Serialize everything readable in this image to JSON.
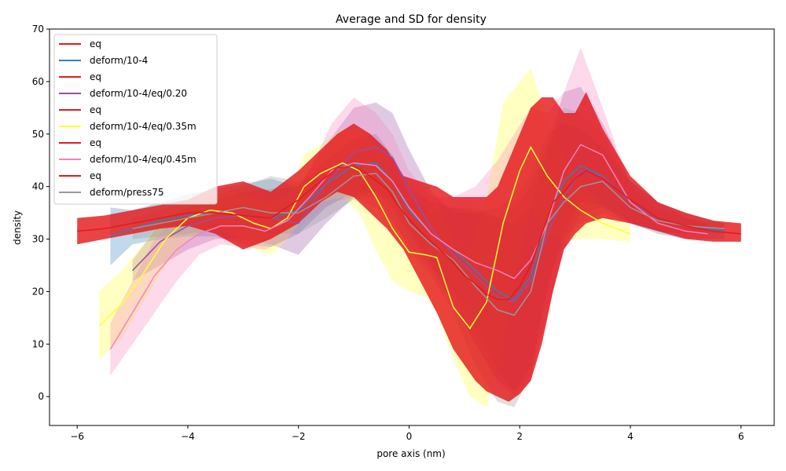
{
  "chart_data": {
    "type": "line",
    "title": "Average and SD for density",
    "xlabel": "pore axis (nm)",
    "ylabel": "density",
    "xlim": [
      -6.5,
      6.6
    ],
    "ylim": [
      -5.5,
      70
    ],
    "xticks": [
      -6,
      -4,
      -2,
      0,
      2,
      4,
      6
    ],
    "yticks": [
      0,
      10,
      20,
      30,
      40,
      50,
      60,
      70
    ],
    "legend_position": "top-left",
    "grid": false,
    "legend": [
      {
        "label": "eq",
        "color": "#e41a1c"
      },
      {
        "label": "deform/10-4",
        "color": "#377eb8"
      },
      {
        "label": "eq",
        "color": "#e41a1c"
      },
      {
        "label": "deform/10-4/eq/0.20",
        "color": "#984ea3"
      },
      {
        "label": "eq",
        "color": "#e41a1c"
      },
      {
        "label": "deform/10-4/eq/0.35m",
        "color": "#ffff33"
      },
      {
        "label": "eq",
        "color": "#e41a1c"
      },
      {
        "label": "deform/10-4/eq/0.45m",
        "color": "#f781bf"
      },
      {
        "label": "eq",
        "color": "#e41a1c"
      },
      {
        "label": "deform/press75",
        "color": "#999999"
      }
    ],
    "series": [
      {
        "name": "deform/10-4",
        "color": "#377eb8",
        "x": [
          -5.4,
          -5.0,
          -4.5,
          -4.0,
          -3.5,
          -3.0,
          -2.5,
          -2.0,
          -1.5,
          -1.0,
          -0.6,
          -0.3,
          0.0,
          0.4,
          0.8,
          1.2,
          1.6,
          1.9,
          2.2,
          2.5,
          2.8,
          3.1,
          3.5,
          4.0,
          4.5,
          5.0,
          5.7
        ],
        "y": [
          30.5,
          32.0,
          33.5,
          34.5,
          35.0,
          34.5,
          34.0,
          35.5,
          40.5,
          44.0,
          44.5,
          41.0,
          35.5,
          31.0,
          28.0,
          24.0,
          20.0,
          18.5,
          23.0,
          34.0,
          41.0,
          44.0,
          42.0,
          37.0,
          34.0,
          32.5,
          31.5
        ],
        "lower": [
          25.0,
          29.0,
          30.0,
          30.5,
          30.5,
          29.0,
          28.5,
          31.0,
          36.0,
          39.0,
          39.0,
          36.0,
          31.0,
          25.0,
          20.0,
          13.0,
          5.0,
          1.0,
          6.0,
          20.0,
          32.0,
          37.0,
          36.5,
          33.0,
          31.0,
          30.0,
          30.0
        ],
        "upper": [
          36.0,
          35.5,
          37.0,
          38.5,
          39.5,
          40.5,
          41.5,
          40.0,
          45.0,
          49.0,
          50.0,
          46.0,
          40.0,
          37.0,
          36.0,
          35.0,
          36.0,
          38.0,
          42.0,
          50.0,
          52.0,
          51.0,
          47.5,
          41.0,
          37.0,
          35.0,
          33.0
        ]
      },
      {
        "name": "deform/10-4/eq/0.20",
        "color": "#984ea3",
        "x": [
          -5.0,
          -4.5,
          -4.0,
          -3.5,
          -3.0,
          -2.5,
          -2.0,
          -1.5,
          -1.0,
          -0.6,
          -0.3,
          0.0,
          0.4,
          0.8,
          1.2,
          1.6,
          1.9,
          2.2,
          2.5,
          2.8,
          3.1,
          3.5,
          4.0,
          4.5,
          5.0,
          5.4
        ],
        "y": [
          24.0,
          29.5,
          32.5,
          34.0,
          34.5,
          34.0,
          33.0,
          40.5,
          46.5,
          47.5,
          45.5,
          39.5,
          32.0,
          27.0,
          23.0,
          19.0,
          18.0,
          22.0,
          31.0,
          38.0,
          43.0,
          42.0,
          37.0,
          34.0,
          32.5,
          32.0
        ],
        "lower": [
          22.0,
          25.0,
          28.0,
          30.0,
          30.0,
          29.0,
          27.0,
          33.0,
          38.0,
          39.0,
          37.0,
          32.0,
          25.0,
          18.0,
          10.0,
          3.0,
          1.0,
          4.0,
          16.0,
          28.0,
          35.0,
          36.0,
          33.0,
          31.5,
          31.0,
          31.0
        ],
        "upper": [
          26.0,
          33.0,
          36.0,
          37.5,
          39.0,
          39.5,
          40.0,
          48.0,
          55.0,
          56.0,
          54.0,
          47.0,
          39.0,
          35.0,
          35.0,
          34.0,
          36.0,
          40.0,
          48.0,
          58.0,
          59.0,
          52.0,
          41.0,
          37.0,
          34.0,
          33.0
        ]
      },
      {
        "name": "deform/10-4/eq/0.35m",
        "color": "#ffff33",
        "x": [
          -5.6,
          -5.2,
          -4.8,
          -4.4,
          -4.0,
          -3.6,
          -3.2,
          -2.8,
          -2.5,
          -2.2,
          -1.9,
          -1.6,
          -1.2,
          -0.9,
          -0.6,
          -0.3,
          0.0,
          0.3,
          0.5,
          0.8,
          1.1,
          1.4,
          1.7,
          2.0,
          2.2,
          2.5,
          2.8,
          3.1,
          3.5,
          4.0
        ],
        "y": [
          13.5,
          17.5,
          23.5,
          30.0,
          34.0,
          35.5,
          35.0,
          33.0,
          32.0,
          34.0,
          40.0,
          42.5,
          44.5,
          43.0,
          38.0,
          32.0,
          27.5,
          27.0,
          26.5,
          17.0,
          13.0,
          18.0,
          33.0,
          43.0,
          47.5,
          42.0,
          38.0,
          35.5,
          33.0,
          31.0
        ],
        "lower": [
          7.0,
          11.0,
          18.0,
          25.0,
          30.0,
          32.0,
          31.0,
          28.0,
          27.0,
          30.0,
          34.0,
          37.0,
          38.0,
          35.0,
          28.0,
          22.0,
          20.0,
          19.0,
          16.0,
          7.0,
          0.0,
          -2.0,
          10.0,
          27.0,
          36.0,
          31.0,
          30.0,
          30.0,
          30.0,
          29.5
        ],
        "upper": [
          20.0,
          24.0,
          29.0,
          35.0,
          38.0,
          39.0,
          39.0,
          38.0,
          37.0,
          38.0,
          46.0,
          48.0,
          51.0,
          51.0,
          48.0,
          42.0,
          35.0,
          35.0,
          37.0,
          30.0,
          28.0,
          38.0,
          56.0,
          60.0,
          62.5,
          53.0,
          46.0,
          41.0,
          36.0,
          32.5
        ]
      },
      {
        "name": "deform/10-4/eq/0.45m",
        "color": "#f781bf",
        "x": [
          -5.4,
          -5.0,
          -4.6,
          -4.2,
          -3.8,
          -3.4,
          -3.0,
          -2.6,
          -2.2,
          -1.8,
          -1.4,
          -1.0,
          -0.6,
          -0.3,
          0.0,
          0.4,
          0.8,
          1.2,
          1.6,
          1.9,
          2.2,
          2.5,
          2.8,
          3.1,
          3.5,
          4.0,
          4.5,
          5.0,
          5.4
        ],
        "y": [
          9.0,
          16.0,
          23.0,
          28.0,
          31.0,
          32.5,
          32.5,
          31.5,
          33.5,
          38.0,
          43.0,
          44.5,
          44.0,
          41.0,
          36.0,
          31.0,
          28.0,
          25.5,
          24.0,
          22.5,
          26.0,
          33.0,
          43.0,
          48.0,
          46.0,
          37.0,
          33.0,
          31.5,
          31.0
        ],
        "lower": [
          4.0,
          10.0,
          16.0,
          22.0,
          27.0,
          29.0,
          28.5,
          28.0,
          30.0,
          34.0,
          37.0,
          38.0,
          36.0,
          33.0,
          29.0,
          24.0,
          18.0,
          10.0,
          3.0,
          0.0,
          3.0,
          15.0,
          30.0,
          38.0,
          40.0,
          34.0,
          31.5,
          30.5,
          30.0
        ],
        "upper": [
          14.0,
          22.0,
          30.0,
          34.0,
          35.0,
          36.0,
          36.5,
          35.0,
          37.0,
          43.0,
          52.0,
          57.0,
          54.0,
          50.0,
          43.0,
          38.0,
          38.0,
          40.0,
          45.0,
          50.0,
          55.0,
          54.0,
          58.0,
          66.5,
          55.0,
          40.0,
          35.0,
          33.0,
          32.0
        ]
      },
      {
        "name": "deform/press75",
        "color": "#999999",
        "x": [
          -5.0,
          -4.5,
          -4.0,
          -3.5,
          -3.0,
          -2.5,
          -2.0,
          -1.5,
          -1.0,
          -0.6,
          -0.3,
          0.0,
          0.4,
          0.8,
          1.2,
          1.6,
          1.9,
          2.2,
          2.5,
          2.8,
          3.1,
          3.5,
          4.0,
          4.5,
          5.0,
          5.7
        ],
        "y": [
          32.0,
          33.0,
          34.0,
          35.0,
          36.0,
          35.0,
          35.0,
          38.0,
          42.0,
          42.5,
          39.0,
          33.0,
          29.0,
          26.0,
          21.0,
          16.5,
          15.5,
          20.0,
          33.0,
          37.0,
          40.0,
          41.0,
          36.0,
          33.5,
          32.5,
          32.0
        ],
        "lower": [
          30.0,
          30.5,
          31.0,
          31.5,
          32.0,
          31.0,
          31.0,
          34.0,
          37.5,
          38.0,
          34.0,
          28.0,
          23.0,
          16.0,
          6.0,
          -1.0,
          -2.0,
          4.0,
          22.0,
          30.0,
          33.0,
          35.0,
          33.0,
          31.5,
          31.0,
          31.0
        ],
        "upper": [
          34.0,
          35.5,
          37.0,
          38.5,
          40.0,
          42.0,
          41.0,
          42.0,
          46.5,
          47.0,
          44.0,
          38.0,
          35.0,
          36.0,
          36.0,
          34.0,
          33.0,
          36.0,
          47.0,
          55.0,
          54.0,
          50.0,
          40.0,
          35.5,
          34.0,
          33.0
        ]
      },
      {
        "name": "eq",
        "color": "#e41a1c",
        "x": [
          -6.0,
          -5.5,
          -5.0,
          -4.5,
          -4.0,
          -3.5,
          -3.0,
          -2.5,
          -2.0,
          -1.6,
          -1.3,
          -1.0,
          -0.7,
          -0.4,
          -0.1,
          0.2,
          0.5,
          0.8,
          1.0,
          1.2,
          1.4,
          1.6,
          1.8,
          2.0,
          2.2,
          2.4,
          2.6,
          2.8,
          3.0,
          3.2,
          3.5,
          4.0,
          4.5,
          5.0,
          5.5,
          6.0
        ],
        "y": [
          31.5,
          32.0,
          33.0,
          34.0,
          35.0,
          35.0,
          34.5,
          34.0,
          37.5,
          41.0,
          43.5,
          44.0,
          42.0,
          39.5,
          35.0,
          31.5,
          28.5,
          25.5,
          23.0,
          21.5,
          19.5,
          18.5,
          18.5,
          21.0,
          25.0,
          31.0,
          37.0,
          39.0,
          41.5,
          43.0,
          41.5,
          37.5,
          34.0,
          32.5,
          31.5,
          31.0
        ],
        "lower": [
          29.0,
          30.0,
          31.0,
          32.0,
          32.5,
          31.0,
          28.0,
          30.0,
          33.0,
          37.0,
          39.0,
          38.0,
          35.0,
          32.0,
          28.0,
          22.0,
          16.0,
          9.0,
          6.0,
          3.0,
          1.0,
          0.0,
          -1.0,
          0.5,
          3.0,
          10.0,
          20.0,
          28.0,
          31.0,
          33.0,
          34.0,
          33.0,
          31.5,
          30.0,
          29.5,
          29.5
        ],
        "upper": [
          34.0,
          34.5,
          35.5,
          36.5,
          37.5,
          40.0,
          41.0,
          39.0,
          43.0,
          47.0,
          50.0,
          52.0,
          50.0,
          47.0,
          42.0,
          41.0,
          40.0,
          38.0,
          38.0,
          38.0,
          38.0,
          40.0,
          45.0,
          50.0,
          55.0,
          57.0,
          57.0,
          54.0,
          54.0,
          58.0,
          51.0,
          42.0,
          37.0,
          35.0,
          33.5,
          33.0
        ]
      }
    ]
  }
}
